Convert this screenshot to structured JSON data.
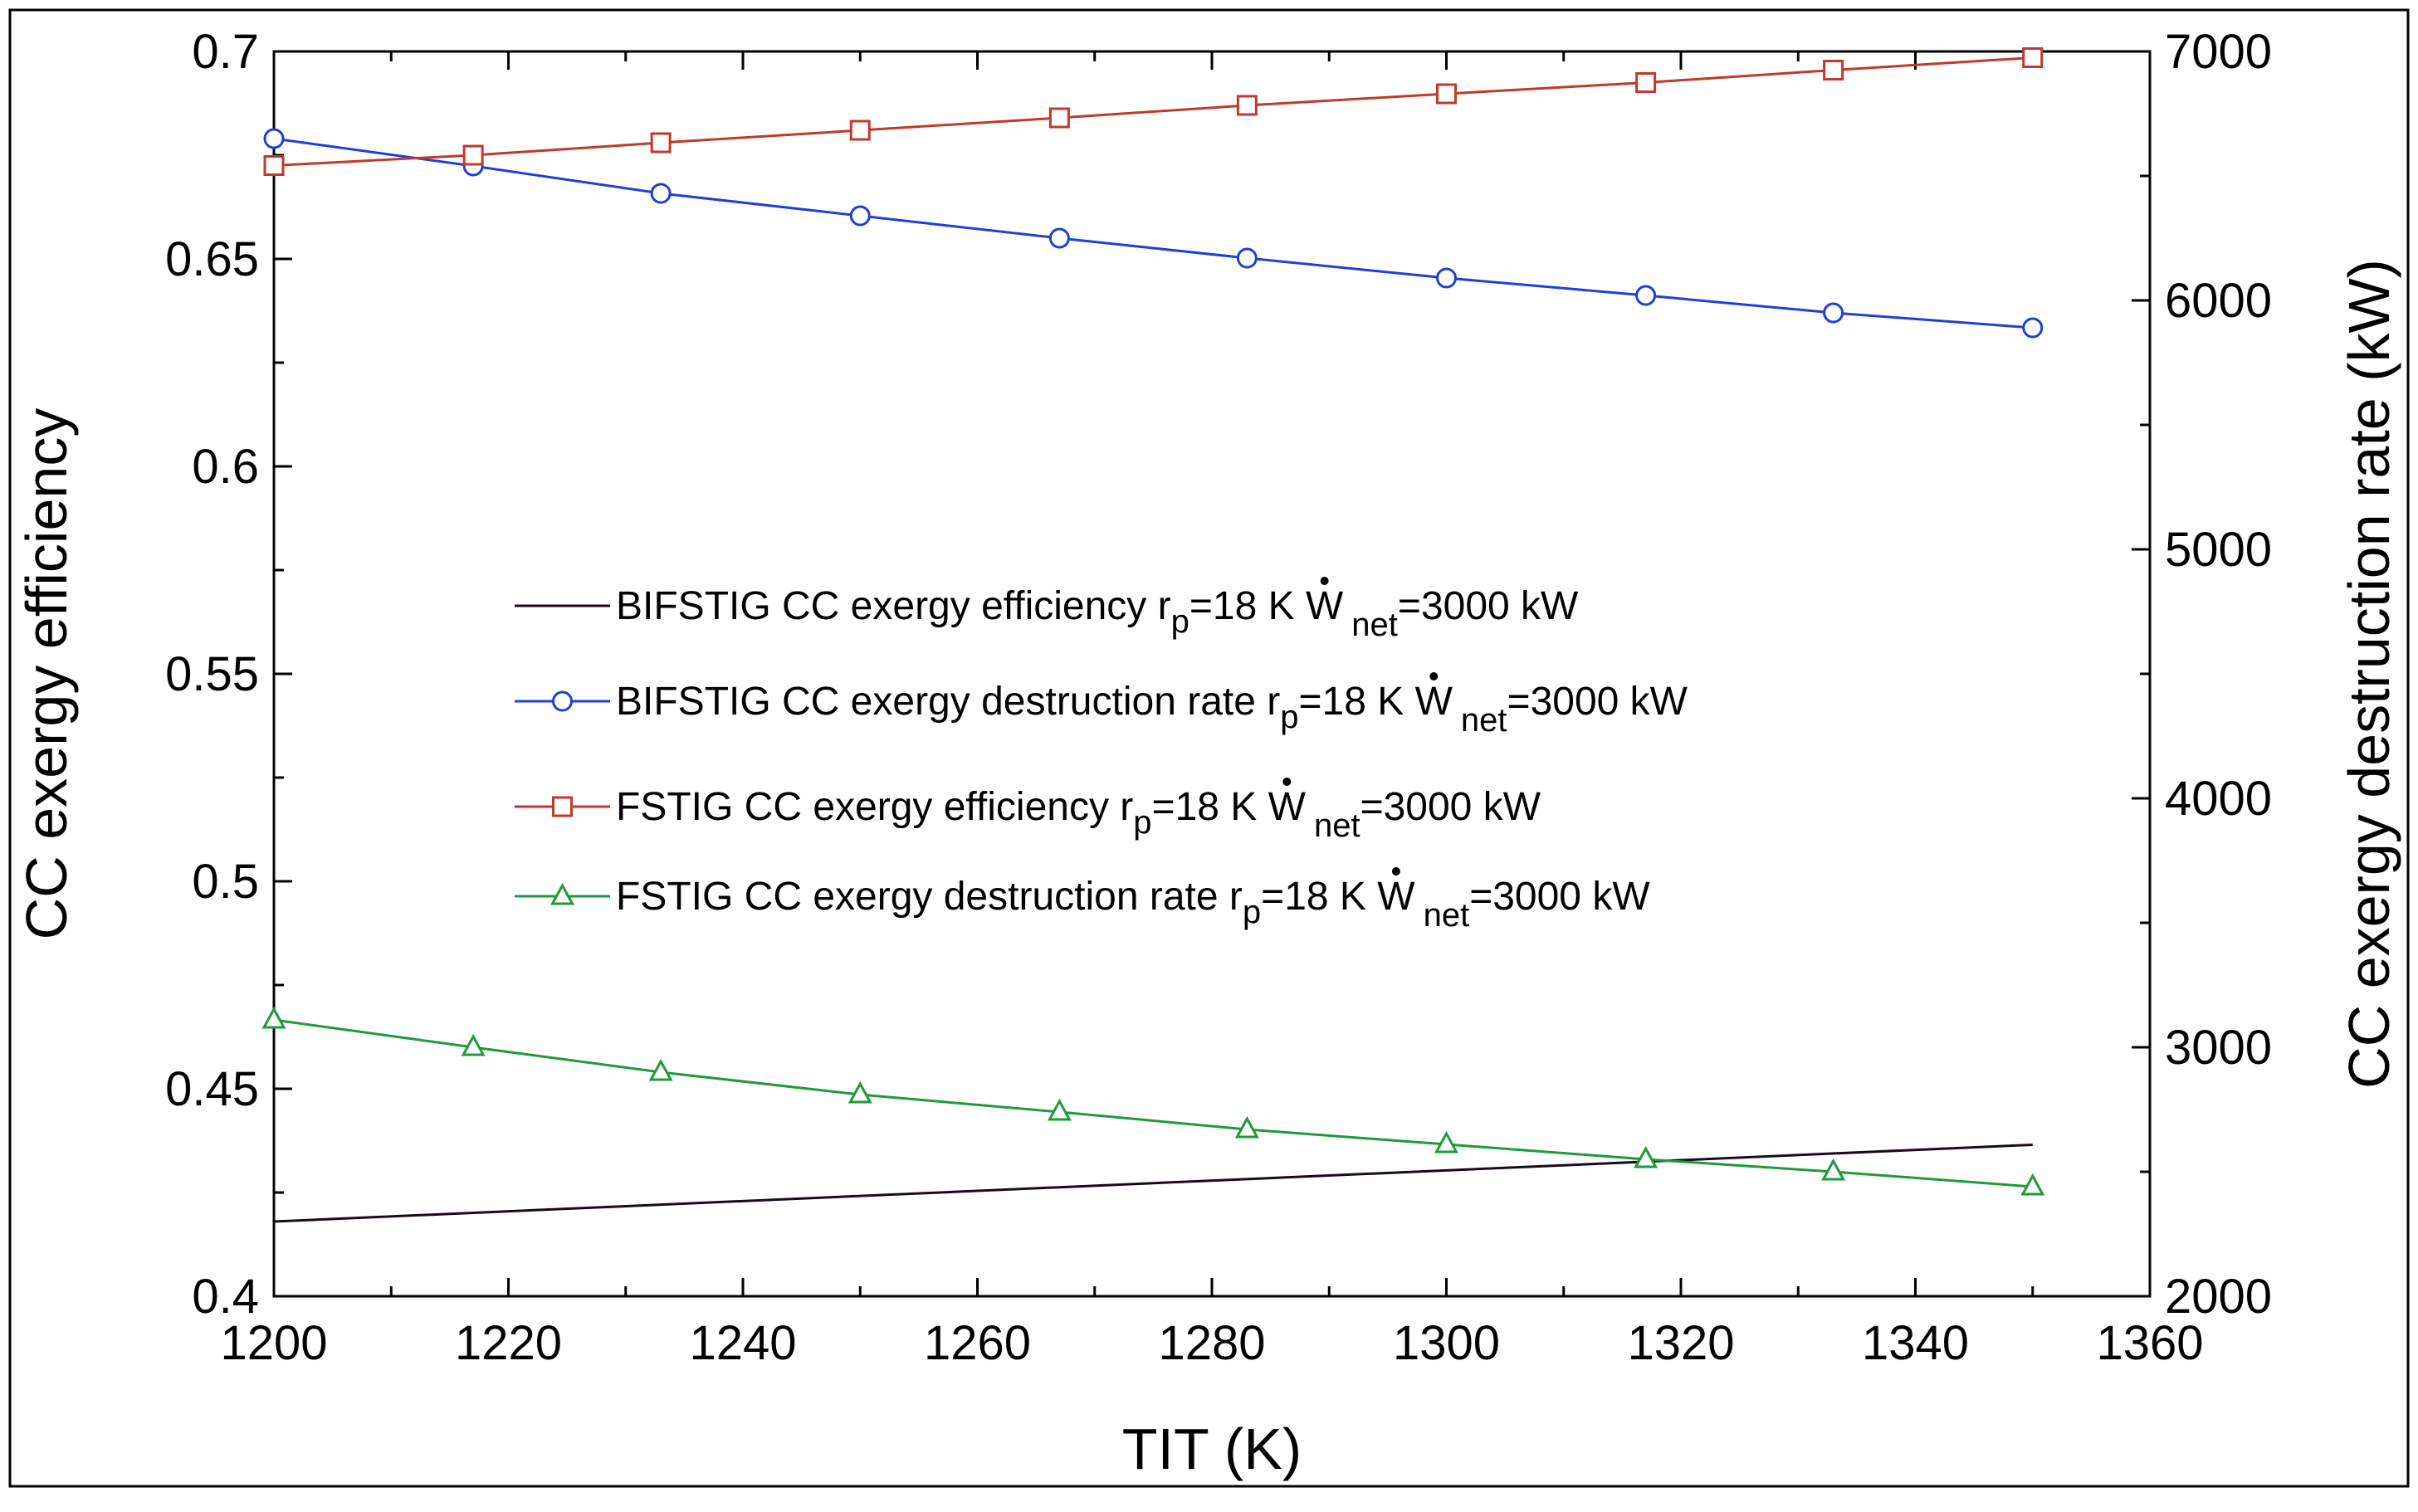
{
  "chart_data": {
    "type": "line",
    "title": "",
    "xlabel": "TIT (K)",
    "ylabel": "CC exergy efficiency",
    "y2label": "CC exergy destruction rate (kW)",
    "xlim": [
      1200,
      1360
    ],
    "ylim": [
      0.4,
      0.7
    ],
    "y2lim": [
      2000,
      7000
    ],
    "xticks": [
      1200,
      1220,
      1240,
      1260,
      1280,
      1300,
      1320,
      1340,
      1360
    ],
    "xtick_labels": [
      "1200",
      "1220",
      "1240",
      "1260",
      "1280",
      "1300",
      "1320",
      "1340",
      "1360"
    ],
    "yticks": [
      0.4,
      0.45,
      0.5,
      0.55,
      0.6,
      0.65,
      0.7
    ],
    "ytick_labels": [
      "0.4",
      "0.45",
      "0.5",
      "0.55",
      "0.6",
      "0.65",
      "0.7"
    ],
    "y2ticks": [
      2000,
      3000,
      4000,
      5000,
      6000,
      7000
    ],
    "y2tick_labels": [
      "2000",
      "3000",
      "4000",
      "5000",
      "6000",
      "7000"
    ],
    "grid": false,
    "legend_position": "center-left",
    "legend_label_suffix": "=3000 kW",
    "series": [
      {
        "name": "BIFSTIG CC exergy efficiency",
        "legend_prefix": "BIFSTIG CC exergy efficiency r",
        "legend_sub1": "p",
        "legend_mid": "=18 K W",
        "legend_sub2": "net",
        "legend_suffix": "=3000 kW",
        "axis": "left",
        "color": "#1a0a1a",
        "marker": "none",
        "x": [
          1200,
          1350
        ],
        "values": [
          0.418,
          0.4365
        ]
      },
      {
        "name": "BIFSTIG CC exergy destruction rate",
        "legend_prefix": "BIFSTIG CC exergy destruction rate r",
        "legend_sub1": "p",
        "legend_mid": "=18 K W",
        "legend_sub2": "net",
        "legend_suffix": "=3000 kW",
        "axis": "right",
        "color": "#1f3fd6",
        "marker": "circle",
        "x": [
          1200,
          1217,
          1233,
          1250,
          1267,
          1283,
          1300,
          1317,
          1333,
          1350
        ],
        "values": [
          6650,
          6540,
          6430,
          6340,
          6250,
          6170,
          6090,
          6020,
          5950,
          5890
        ]
      },
      {
        "name": "FSTIG CC exergy efficiency",
        "legend_prefix": "FSTIG CC exergy efficiency r",
        "legend_sub1": "p",
        "legend_mid": "=18 K W",
        "legend_sub2": "net",
        "legend_suffix": "=3000 kW",
        "axis": "left",
        "color": "#c0392b",
        "marker": "square",
        "x": [
          1200,
          1217,
          1233,
          1250,
          1267,
          1283,
          1300,
          1317,
          1333,
          1350
        ],
        "values": [
          0.6725,
          0.675,
          0.678,
          0.681,
          0.684,
          0.687,
          0.6898,
          0.6925,
          0.6955,
          0.6985
        ]
      },
      {
        "name": "FSTIG CC exergy destruction rate",
        "legend_prefix": "FSTIG CC exergy destruction rate r",
        "legend_sub1": "p",
        "legend_mid": "=18 K W",
        "legend_sub2": "net",
        "legend_suffix": "=3000 kW",
        "axis": "right",
        "color": "#1f9a3a",
        "marker": "triangle",
        "x": [
          1200,
          1217,
          1233,
          1250,
          1267,
          1283,
          1300,
          1317,
          1333,
          1350
        ],
        "values": [
          3110,
          3000,
          2900,
          2810,
          2740,
          2670,
          2610,
          2550,
          2500,
          2440
        ]
      }
    ]
  }
}
